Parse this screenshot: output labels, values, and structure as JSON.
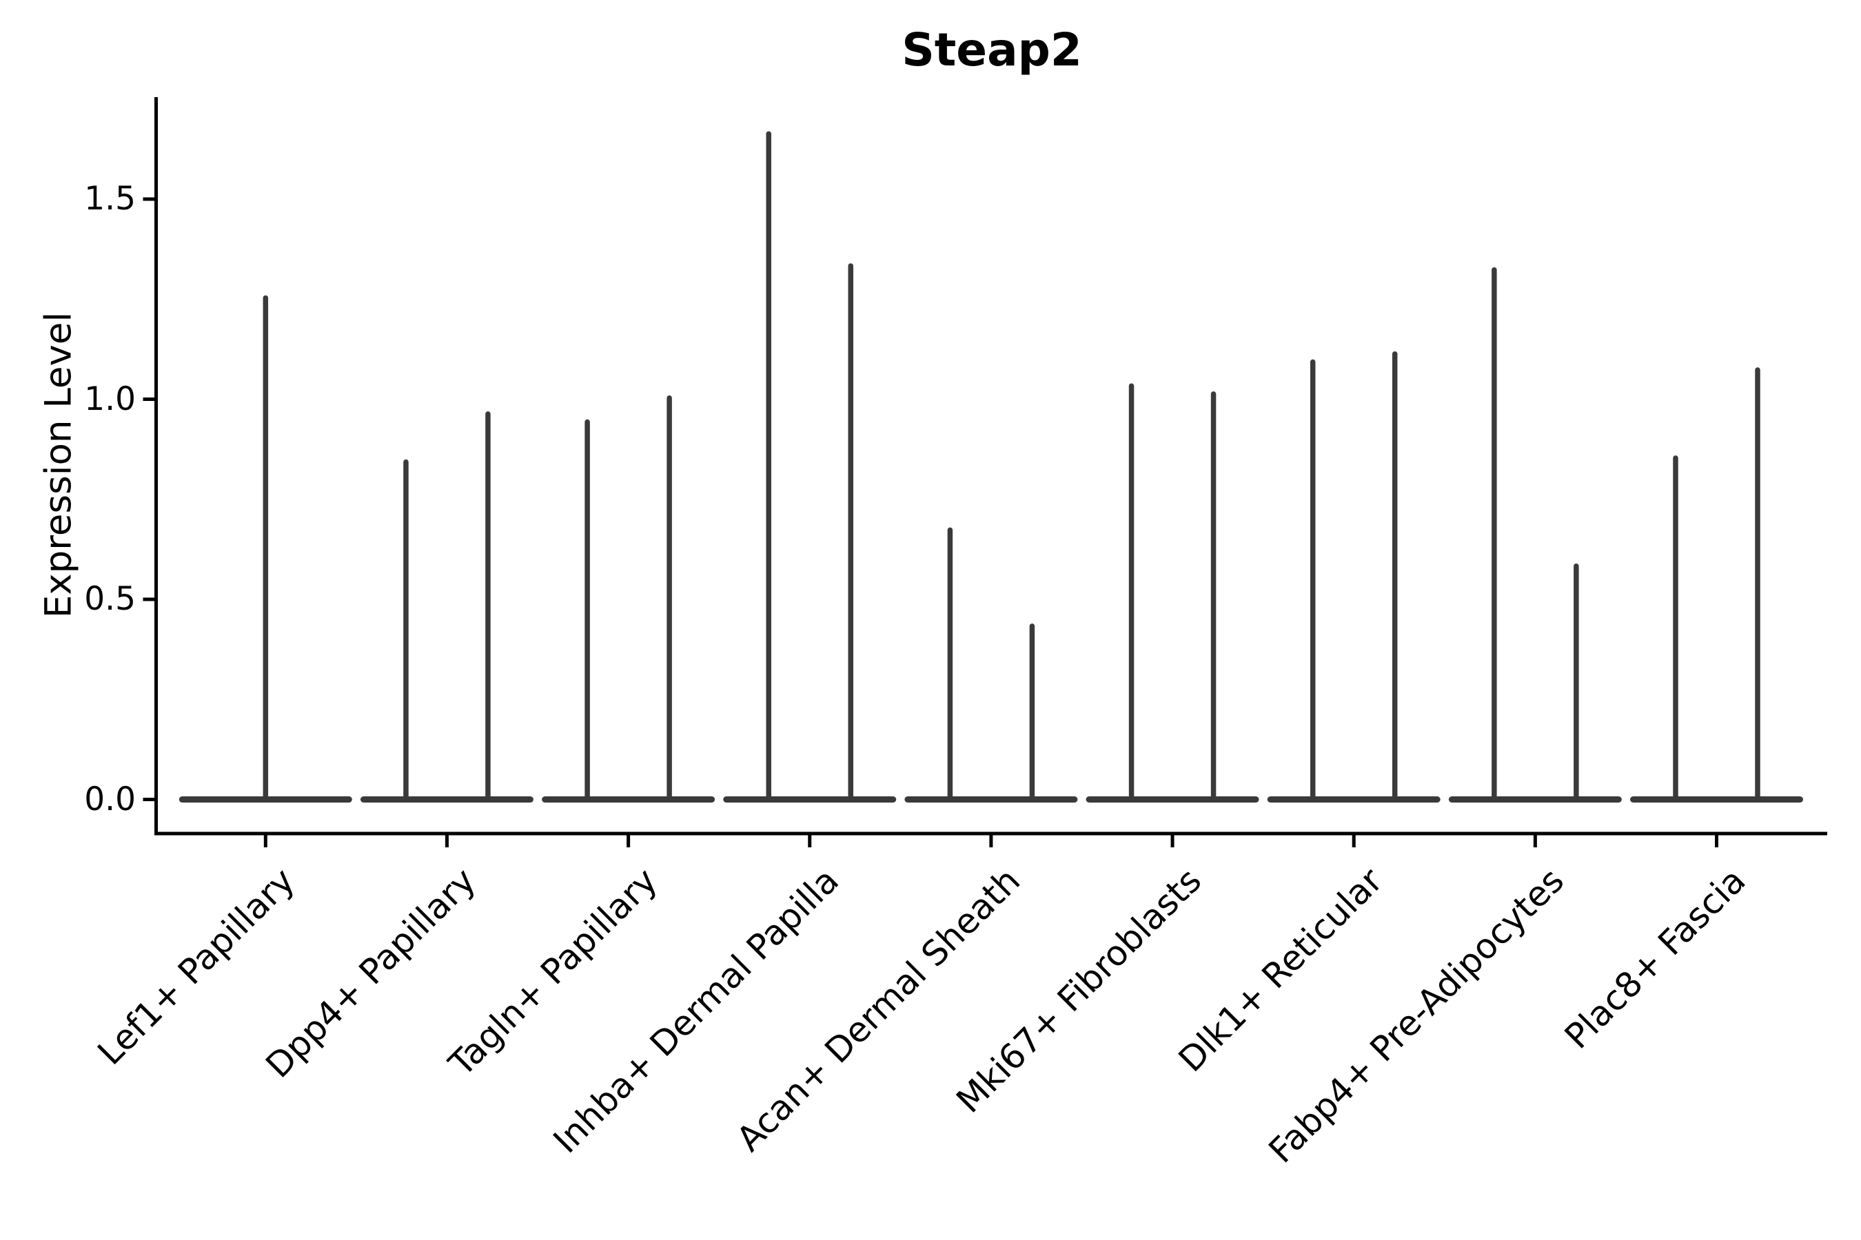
{
  "figure": {
    "title": "Steap2",
    "y_axis": {
      "label": "Expression Level",
      "tick_labels": [
        "0.0",
        "0.5",
        "1.0",
        "1.5"
      ]
    }
  },
  "chart_data": {
    "type": "violin",
    "title": "Steap2",
    "xlabel": "",
    "ylabel": "Expression Level",
    "ylim": [
      -0.09,
      1.75
    ],
    "yticks": [
      0.0,
      0.5,
      1.0,
      1.5
    ],
    "grid": false,
    "legend": "none",
    "stroke_color": "#3a3a3a",
    "axis_color": "#000000",
    "background_color": "#ffffff",
    "categories": [
      "Lef1+ Papillary",
      "Dpp4+ Papillary",
      "Tagln+ Papillary",
      "Inhba+ Dermal Papilla",
      "Acan+ Dermal Sheath",
      "Mki67+ Fibroblasts",
      "Dlk1+ Reticular",
      "Fabp4+ Pre-Adipocytes",
      "Plac8+ Fascia"
    ],
    "violins": [
      {
        "category": "Lef1+ Papillary",
        "split": false,
        "max_values": [
          1.26
        ]
      },
      {
        "category": "Dpp4+ Papillary",
        "split": true,
        "max_values": [
          0.85,
          0.97
        ]
      },
      {
        "category": "Tagln+ Papillary",
        "split": true,
        "max_values": [
          0.95,
          1.01
        ]
      },
      {
        "category": "Inhba+ Dermal Papilla",
        "split": true,
        "max_values": [
          1.67,
          1.34
        ]
      },
      {
        "category": "Acan+ Dermal Sheath",
        "split": true,
        "max_values": [
          0.68,
          0.44
        ]
      },
      {
        "category": "Mki67+ Fibroblasts",
        "split": true,
        "max_values": [
          1.04,
          1.02
        ]
      },
      {
        "category": "Dlk1+ Reticular",
        "split": true,
        "max_values": [
          1.1,
          1.12
        ]
      },
      {
        "category": "Fabp4+ Pre-Adipocytes",
        "split": true,
        "max_values": [
          1.33,
          0.59
        ]
      },
      {
        "category": "Plac8+ Fascia",
        "split": true,
        "max_values": [
          0.86,
          1.08
        ]
      }
    ],
    "description": "Violin plot of Steap2 expression; nearly all density is at 0 so each violin renders as a wide flat base at 0 with a thin tail rising to its maximum expression value."
  }
}
